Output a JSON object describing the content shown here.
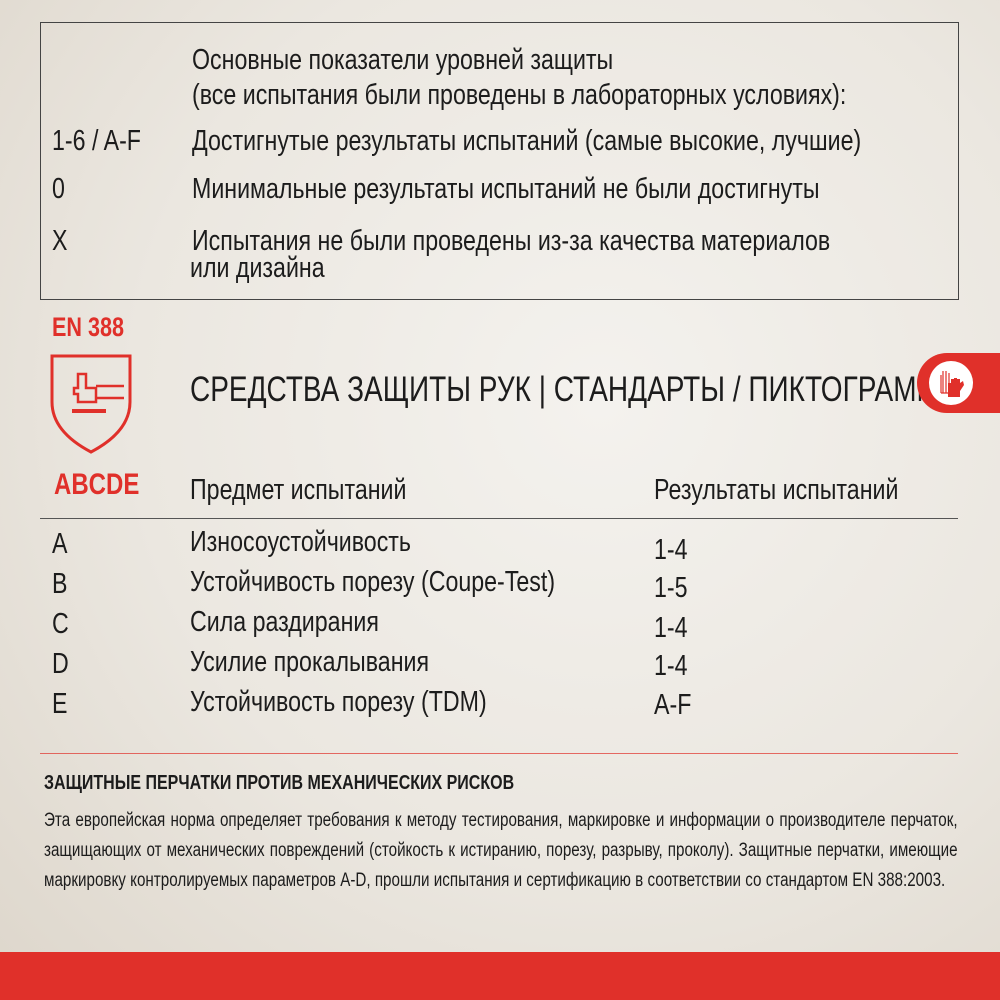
{
  "legend_box": {
    "heading_line1": "Основные показатели уровней защиты",
    "heading_line2": "(все испытания были проведены в лабораторных условиях):",
    "rows": [
      {
        "code": "1-6 / A-F",
        "text": "Достигнутые результаты испытаний (самые высокие, лучшие)"
      },
      {
        "code": "0",
        "text": "Минимальные результаты испытаний не были достигнуты"
      },
      {
        "code": "X",
        "text": "Испытания не были проведены из-за качества материалов",
        "text2": "или дизайна"
      }
    ]
  },
  "standard": {
    "name": "EN 388",
    "code": "ABCDE",
    "icon": "shield-hammer-glove-icon"
  },
  "title": "СРЕДСТВА ЗАЩИТЫ РУК | СТАНДАРТЫ / ПИКТОГРАММЫ",
  "tab_icon": "gloves-icon",
  "table": {
    "headers": [
      "Предмет испытаний",
      "Результаты испытаний"
    ],
    "rows": [
      {
        "letter": "A",
        "subject": "Износоустойчивость",
        "result": "1-4"
      },
      {
        "letter": "B",
        "subject": "Устойчивость порезу (Coupe-Test)",
        "result": "1-5"
      },
      {
        "letter": "C",
        "subject": "Сила раздирания",
        "result": "1-4"
      },
      {
        "letter": "D",
        "subject": "Усилие прокалывания",
        "result": "1-4"
      },
      {
        "letter": "E",
        "subject": "Устойчивость порезу (TDM)",
        "result": "A-F"
      }
    ]
  },
  "description": {
    "heading": "ЗАЩИТНЫЕ ПЕРЧАТКИ ПРОТИВ МЕХАНИЧЕСКИХ РИСКОВ",
    "text": "Эта европейская норма определяет требования к методу тестирования, маркировке и информации о производителе перчаток, защищающих от механических повреждений (стойкость к истиранию, порезу, разрыву, проколу). Защитные перчатки, имеющие маркировку контролируемых параметров A-D, прошли испытания и сертификацию в соответствии со стандартом EN 388:2003."
  },
  "colors": {
    "accent": "#e0302a",
    "text": "#1c1c1c"
  }
}
